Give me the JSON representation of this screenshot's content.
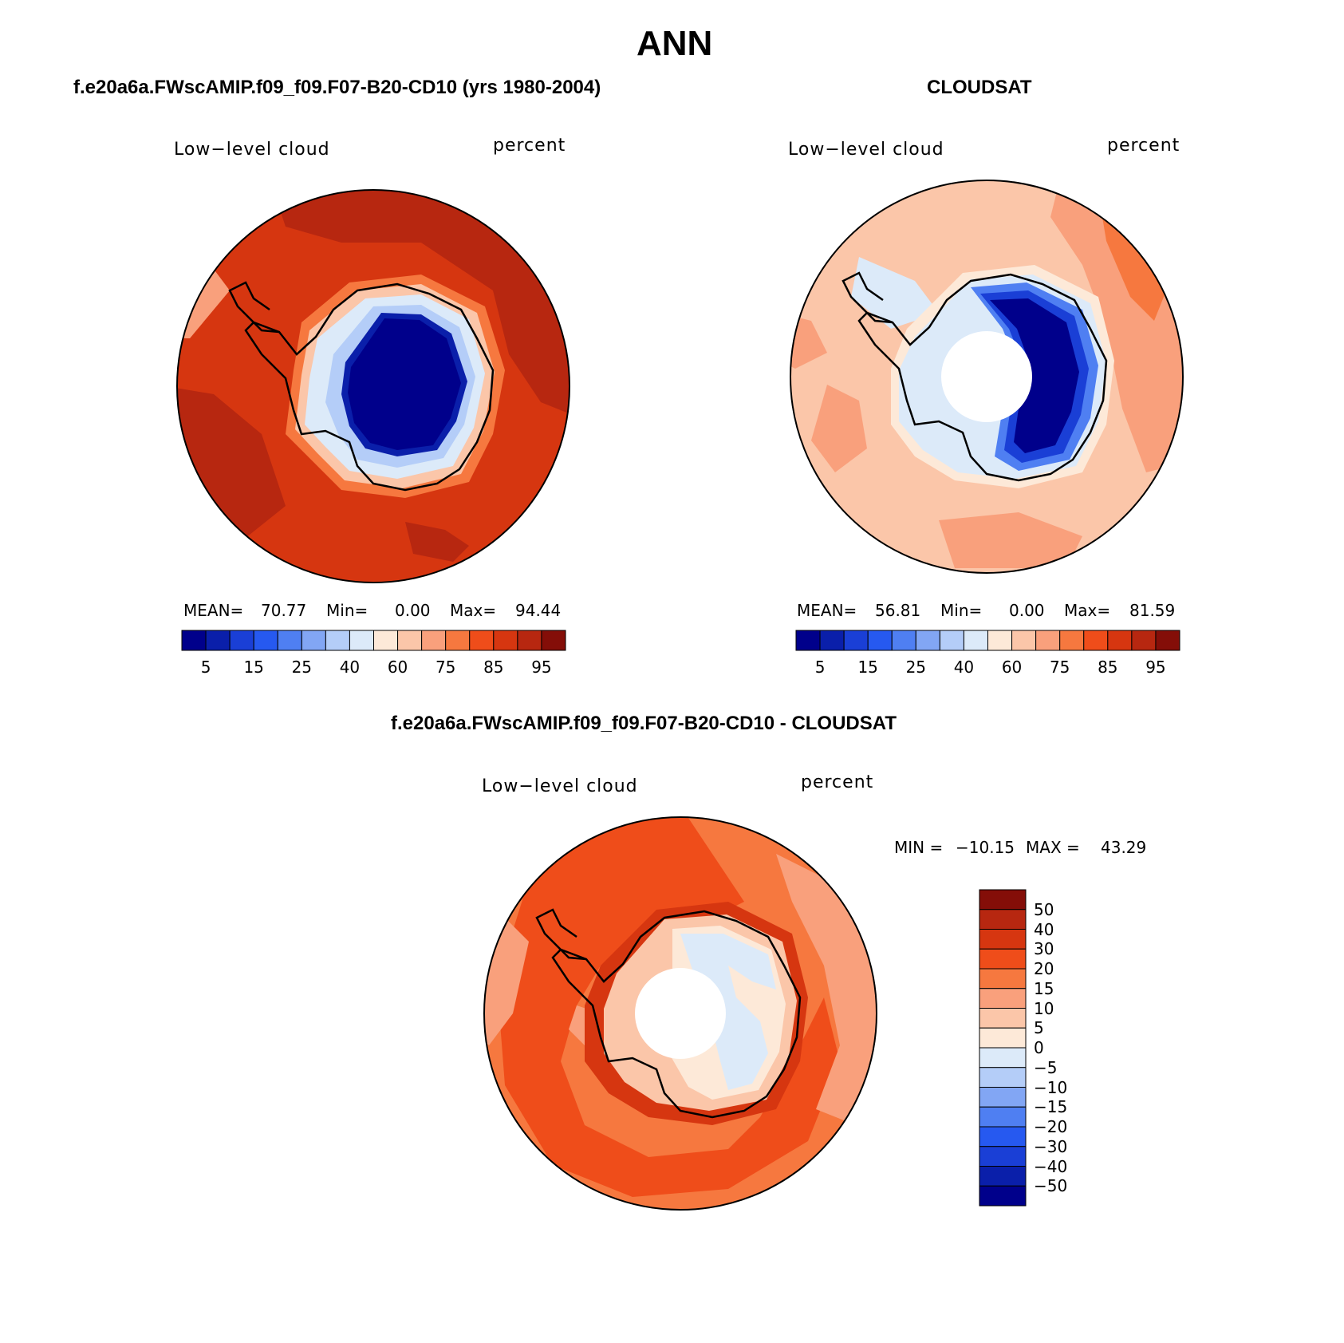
{
  "figure": {
    "title": "ANN"
  },
  "panels": [
    {
      "heading": "f.e20a6a.FWscAMIP.f09_f09.F07-B20-CD10 (yrs 1980-2004)",
      "field_label": "Low−level cloud",
      "units_label": "percent",
      "stats": {
        "mean_label": "MEAN=",
        "mean": "70.77",
        "min_label": "Min=",
        "min": "0.00",
        "max_label": "Max=",
        "max": "94.44"
      },
      "colorbar_ticks": [
        "5",
        "15",
        "25",
        "40",
        "60",
        "75",
        "85",
        "95"
      ],
      "fields": {
        "ocean_high": 88,
        "ocean_general": 82,
        "coast_ring": 70,
        "ice_sheet_interior": 2
      }
    },
    {
      "heading": "CLOUDSAT",
      "field_label": "Low−level cloud",
      "units_label": "percent",
      "stats": {
        "mean_label": "MEAN=",
        "mean": "56.81",
        "min_label": "Min=",
        "min": "0.00",
        "max_label": "Max=",
        "max": "81.59"
      },
      "colorbar_ticks": [
        "5",
        "15",
        "25",
        "40",
        "60",
        "75",
        "85",
        "95"
      ],
      "fields": {
        "ocean_general": 65,
        "coast_ring": 55,
        "ice_sheet_interior": 2,
        "polar_data_gap": "no data"
      }
    },
    {
      "heading": "f.e20a6a.FWscAMIP.f09_f09.F07-B20-CD10 - CLOUDSAT",
      "field_label": "Low−level cloud",
      "units_label": "percent",
      "stats": {
        "min_label": "MIN =",
        "min": "−10.15",
        "max_label": "MAX =",
        "max": "43.29"
      },
      "colorbar_ticks": [
        "50",
        "40",
        "30",
        "20",
        "15",
        "10",
        "5",
        "0",
        "−5",
        "−10",
        "−15",
        "−20",
        "−30",
        "−40",
        "−50"
      ],
      "fields": {
        "ocean_general": 18,
        "ice_sheet_interior": -3,
        "polar_data_gap": "no data"
      }
    }
  ],
  "palettes": {
    "abs_colorbar": [
      "#00008b",
      "#0a1faa",
      "#1a3fd6",
      "#2659f0",
      "#4f7ff2",
      "#82a6f4",
      "#b4cdf8",
      "#dceaf9",
      "#fde9d8",
      "#fbc6a9",
      "#f9a07c",
      "#f6783f",
      "#ef4d1a",
      "#d63610",
      "#b72710",
      "#840e08"
    ],
    "diff_colorbar": [
      "#840e08",
      "#b72710",
      "#d63610",
      "#ef4d1a",
      "#f6783f",
      "#f9a07c",
      "#fbc6a9",
      "#fde9d8",
      "#dceaf9",
      "#b4cdf8",
      "#82a6f4",
      "#4f7ff2",
      "#2659f0",
      "#1a3fd6",
      "#0a1faa",
      "#00008b"
    ]
  }
}
